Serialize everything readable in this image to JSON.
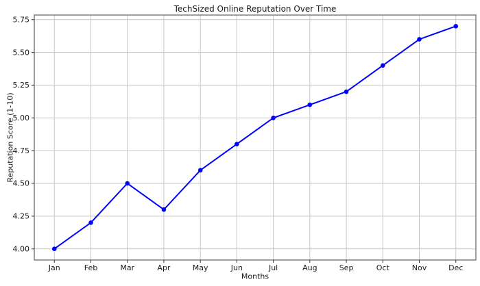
{
  "chart_data": {
    "type": "line",
    "title": "TechSized Online Reputation Over Time",
    "xlabel": "Months",
    "ylabel": "Reputation Score (1-10)",
    "categories": [
      "Jan",
      "Feb",
      "Mar",
      "Apr",
      "May",
      "Jun",
      "Jul",
      "Aug",
      "Sep",
      "Oct",
      "Nov",
      "Dec"
    ],
    "series": [
      {
        "name": "Reputation Score",
        "values": [
          4.0,
          4.2,
          4.5,
          4.3,
          4.6,
          4.8,
          5.0,
          5.1,
          5.2,
          5.4,
          5.6,
          5.7
        ]
      }
    ],
    "yticks": [
      4.0,
      4.25,
      4.5,
      4.75,
      5.0,
      5.25,
      5.5,
      5.75
    ],
    "ytick_labels": [
      "4.00",
      "4.25",
      "4.50",
      "4.75",
      "5.00",
      "5.25",
      "5.50",
      "5.75"
    ],
    "ylim": [
      3.915,
      5.785
    ],
    "grid": true,
    "legend_position": "none"
  },
  "colors": {
    "line": "#0000ff",
    "marker": "#0000ff",
    "grid": "#c6c6c6",
    "spine": "#606060",
    "tick": "#333333",
    "text": "#1a1a1a",
    "background": "#ffffff"
  }
}
